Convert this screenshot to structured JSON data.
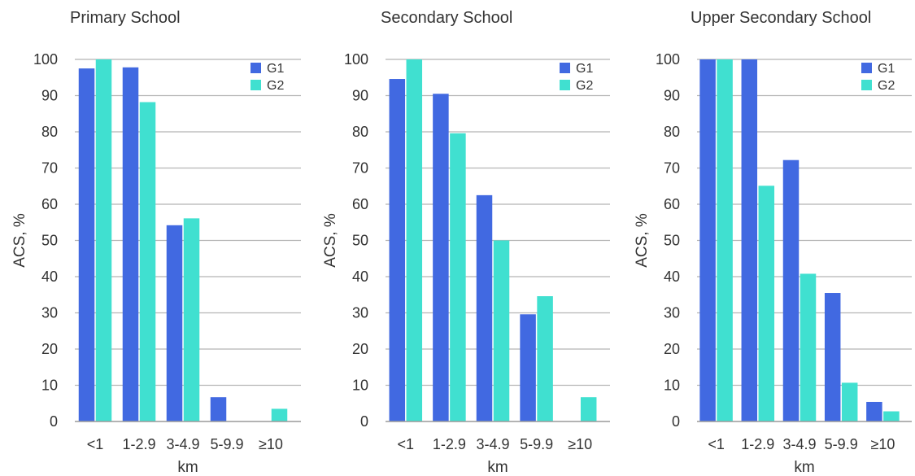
{
  "chart_data": [
    {
      "type": "bar",
      "title": "Primary School",
      "xlabel": "km",
      "ylabel": "ACS, %",
      "ylim": [
        0,
        100
      ],
      "yticks": [
        0,
        10,
        20,
        30,
        40,
        50,
        60,
        70,
        80,
        90,
        100
      ],
      "grid": true,
      "legend_position": "top-right",
      "categories": [
        "<1",
        "1-2.9",
        "3-4.9",
        "5-9.9",
        "≥10"
      ],
      "series": [
        {
          "name": "G1",
          "color": "#4169e1",
          "values": [
            97.5,
            97.8,
            54.2,
            6.7,
            0
          ]
        },
        {
          "name": "G2",
          "color": "#40e0d0",
          "values": [
            100,
            88.2,
            56.1,
            0,
            3.5
          ]
        }
      ]
    },
    {
      "type": "bar",
      "title": "Secondary School",
      "xlabel": "km",
      "ylabel": "ACS, %",
      "ylim": [
        0,
        100
      ],
      "yticks": [
        0,
        10,
        20,
        30,
        40,
        50,
        60,
        70,
        80,
        90,
        100
      ],
      "grid": true,
      "legend_position": "top-right",
      "categories": [
        "<1",
        "1-2.9",
        "3-4.9",
        "5-9.9",
        "≥10"
      ],
      "series": [
        {
          "name": "G1",
          "color": "#4169e1",
          "values": [
            94.6,
            90.5,
            62.5,
            29.6,
            0
          ]
        },
        {
          "name": "G2",
          "color": "#40e0d0",
          "values": [
            100,
            79.6,
            50,
            34.6,
            6.7
          ]
        }
      ]
    },
    {
      "type": "bar",
      "title": "Upper Secondary School",
      "xlabel": "km",
      "ylabel": "ACS, %",
      "ylim": [
        0,
        100
      ],
      "yticks": [
        0,
        10,
        20,
        30,
        40,
        50,
        60,
        70,
        80,
        90,
        100
      ],
      "grid": true,
      "legend_position": "top-right",
      "categories": [
        "<1",
        "1-2.9",
        "3-4.9",
        "5-9.9",
        "≥10"
      ],
      "series": [
        {
          "name": "G1",
          "color": "#4169e1",
          "values": [
            100,
            100,
            72.2,
            35.5,
            5.4
          ]
        },
        {
          "name": "G2",
          "color": "#40e0d0",
          "values": [
            100,
            65.1,
            40.8,
            10.7,
            2.8
          ]
        }
      ]
    }
  ]
}
